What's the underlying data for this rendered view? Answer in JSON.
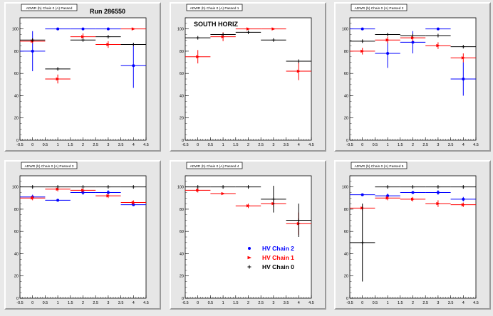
{
  "chart_data": [
    {
      "type": "scatter",
      "title": "ADWR (b) Chain 0 (A) Passed",
      "annotation": "Run 286550",
      "xlim": [
        -0.5,
        4.5
      ],
      "ylim": [
        0,
        110
      ],
      "xticks": [
        "-0.5",
        "0",
        "0.5",
        "1",
        "1.5",
        "2",
        "2.5",
        "3",
        "3.5",
        "4",
        "4.5"
      ],
      "yticks": [
        "0",
        "20",
        "40",
        "60",
        "80",
        "100"
      ],
      "series": [
        {
          "name": "HV Chain 2",
          "color": "#0000ff",
          "marker": "circle",
          "x": [
            0,
            1,
            2,
            3,
            4
          ],
          "y": [
            80,
            100,
            100,
            100,
            67
          ],
          "xerr": [
            0.5,
            0.5,
            0.5,
            0.5,
            0.5
          ],
          "yerr": [
            18,
            0,
            0,
            0,
            20
          ]
        },
        {
          "name": "HV Chain 1",
          "color": "#ff0000",
          "marker": "tri",
          "x": [
            0,
            1,
            2,
            3,
            4
          ],
          "y": [
            89,
            55,
            93,
            86,
            100
          ],
          "xerr": [
            0.5,
            0.5,
            0.5,
            0.5,
            0.5
          ],
          "yerr": [
            2,
            4,
            3,
            3,
            0
          ]
        },
        {
          "name": "HV Chain 0",
          "color": "#000000",
          "marker": "plus",
          "x": [
            0,
            1,
            2,
            3,
            4
          ],
          "y": [
            90,
            64,
            90,
            93,
            86
          ],
          "xerr": [
            0.5,
            0.5,
            0.5,
            0.5,
            0.5
          ],
          "yerr": [
            0,
            0,
            0,
            0,
            0
          ]
        }
      ]
    },
    {
      "type": "scatter",
      "title": "ADWR (b) Chain 0 (A) Passed 1",
      "annotation": "SOUTH HORIZ",
      "xlim": [
        -0.5,
        4.5
      ],
      "ylim": [
        0,
        110
      ],
      "xticks": [
        "-0.5",
        "0",
        "0.5",
        "1",
        "1.5",
        "2",
        "2.5",
        "3",
        "3.5",
        "4",
        "4.5"
      ],
      "yticks": [
        "0",
        "20",
        "40",
        "60",
        "80",
        "100"
      ],
      "series": [
        {
          "name": "HV Chain 1",
          "color": "#ff0000",
          "marker": "tri",
          "x": [
            0,
            1,
            2,
            3,
            4
          ],
          "y": [
            75,
            93,
            100,
            100,
            62
          ],
          "xerr": [
            0.5,
            0.5,
            0.5,
            0.5,
            0.5
          ],
          "yerr": [
            6,
            4,
            0,
            0,
            8
          ]
        },
        {
          "name": "HV Chain 0",
          "color": "#000000",
          "marker": "plus",
          "x": [
            0,
            1,
            2,
            3,
            4
          ],
          "y": [
            92,
            95,
            97,
            90,
            71
          ],
          "xerr": [
            0.5,
            0.5,
            0.5,
            0.5,
            0.5
          ],
          "yerr": [
            0,
            0,
            0,
            0,
            0
          ]
        }
      ]
    },
    {
      "type": "scatter",
      "title": "ADWR (b) Chain 0 (A) Passed 2",
      "annotation": "",
      "xlim": [
        -0.5,
        4.5
      ],
      "ylim": [
        0,
        110
      ],
      "xticks": [
        "-0.5",
        "0",
        "0.5",
        "1",
        "1.5",
        "2",
        "2.5",
        "3",
        "3.5",
        "4",
        "4.5"
      ],
      "yticks": [
        "0",
        "20",
        "40",
        "60",
        "80",
        "100"
      ],
      "series": [
        {
          "name": "HV Chain 2",
          "color": "#0000ff",
          "marker": "circle",
          "x": [
            0,
            1,
            2,
            3,
            4
          ],
          "y": [
            100,
            78,
            88,
            100,
            55
          ],
          "xerr": [
            0.5,
            0.5,
            0.5,
            0.5,
            0.5
          ],
          "yerr": [
            0,
            13,
            10,
            0,
            15
          ]
        },
        {
          "name": "HV Chain 1",
          "color": "#ff0000",
          "marker": "tri",
          "x": [
            0,
            1,
            2,
            3,
            4
          ],
          "y": [
            80,
            90,
            92,
            85,
            74
          ],
          "xerr": [
            0.5,
            0.5,
            0.5,
            0.5,
            0.5
          ],
          "yerr": [
            3,
            3,
            3,
            3,
            4
          ]
        },
        {
          "name": "HV Chain 0",
          "color": "#000000",
          "marker": "plus",
          "x": [
            0,
            1,
            2,
            3,
            4
          ],
          "y": [
            89,
            95,
            94,
            94,
            84
          ],
          "xerr": [
            0.5,
            0.5,
            0.5,
            0.5,
            0.5
          ],
          "yerr": [
            0,
            0,
            0,
            0,
            0
          ]
        }
      ]
    },
    {
      "type": "scatter",
      "title": "ADWR (b) Chain 0 (A) Passed 3",
      "annotation": "",
      "xlim": [
        -0.5,
        4.5
      ],
      "ylim": [
        0,
        110
      ],
      "xticks": [
        "-0.5",
        "0",
        "0.5",
        "1",
        "1.5",
        "2",
        "2.5",
        "3",
        "3.5",
        "4",
        "4.5"
      ],
      "yticks": [
        "0",
        "20",
        "40",
        "60",
        "80",
        "100"
      ],
      "series": [
        {
          "name": "HV Chain 2",
          "color": "#0000ff",
          "marker": "circle",
          "x": [
            0,
            1,
            2,
            3,
            4
          ],
          "y": [
            91,
            88,
            95,
            95,
            84
          ],
          "xerr": [
            0.5,
            0.5,
            0.5,
            0.5,
            0.5
          ],
          "yerr": [
            2,
            0,
            2,
            2,
            0
          ]
        },
        {
          "name": "HV Chain 1",
          "color": "#ff0000",
          "marker": "tri",
          "x": [
            0,
            1,
            2,
            3,
            4
          ],
          "y": [
            90,
            98,
            97,
            92,
            86
          ],
          "xerr": [
            0.5,
            0.5,
            0.5,
            0.5,
            0.5
          ],
          "yerr": [
            2,
            2,
            2,
            2,
            2
          ]
        },
        {
          "name": "HV Chain 0",
          "color": "#000000",
          "marker": "plus",
          "x": [
            0,
            1,
            2,
            3,
            4
          ],
          "y": [
            100,
            100,
            100,
            100,
            100
          ],
          "xerr": [
            0.5,
            0.5,
            0.5,
            0.5,
            0.5
          ],
          "yerr": [
            0,
            0,
            0,
            0,
            0
          ]
        }
      ]
    },
    {
      "type": "scatter",
      "title": "ADWR (b) Chain 0 (A) Passed 4",
      "annotation": "",
      "xlim": [
        -0.5,
        4.5
      ],
      "ylim": [
        0,
        110
      ],
      "xticks": [
        "-0.5",
        "0",
        "0.5",
        "1",
        "1.5",
        "2",
        "2.5",
        "3",
        "3.5",
        "4",
        "4.5"
      ],
      "yticks": [
        "0",
        "20",
        "40",
        "60",
        "80",
        "100"
      ],
      "legend": {
        "placement": "bottom-right",
        "entries": [
          "HV Chain 2",
          "HV Chain 1",
          "HV Chain 0"
        ],
        "colors": [
          "#0000ff",
          "#ff0000",
          "#000000"
        ],
        "markers": [
          "circle",
          "tri",
          "plus"
        ]
      },
      "series": [
        {
          "name": "HV Chain 1",
          "color": "#ff0000",
          "marker": "tri",
          "x": [
            0,
            1,
            2,
            3,
            4
          ],
          "y": [
            97,
            94,
            83,
            85,
            67
          ],
          "xerr": [
            0.5,
            0.5,
            0.5,
            0.5,
            0.5
          ],
          "yerr": [
            2,
            0,
            2,
            3,
            10
          ]
        },
        {
          "name": "HV Chain 0",
          "color": "#000000",
          "marker": "plus",
          "x": [
            0,
            1,
            2,
            3,
            4
          ],
          "y": [
            100,
            100,
            100,
            89,
            70
          ],
          "xerr": [
            0.5,
            0.5,
            0.5,
            0.5,
            0.5
          ],
          "yerr": [
            0,
            0,
            0,
            12,
            15
          ]
        }
      ]
    },
    {
      "type": "scatter",
      "title": "ADWR (b) Chain 0 (A) Passed 5",
      "annotation": "",
      "xlim": [
        -0.5,
        4.5
      ],
      "ylim": [
        0,
        110
      ],
      "xticks": [
        "-0.5",
        "0",
        "0.5",
        "1",
        "1.5",
        "2",
        "2.5",
        "3",
        "3.5",
        "4",
        "4.5"
      ],
      "yticks": [
        "0",
        "20",
        "40",
        "60",
        "80",
        "100"
      ],
      "series": [
        {
          "name": "HV Chain 2",
          "color": "#0000ff",
          "marker": "circle",
          "x": [
            0,
            1,
            2,
            3,
            4
          ],
          "y": [
            93,
            92,
            95,
            95,
            89
          ],
          "xerr": [
            0.5,
            0.5,
            0.5,
            0.5,
            0.5
          ],
          "yerr": [
            0,
            2,
            0,
            2,
            2
          ]
        },
        {
          "name": "HV Chain 1",
          "color": "#ff0000",
          "marker": "tri",
          "x": [
            0,
            1,
            2,
            3,
            4
          ],
          "y": [
            81,
            90,
            89,
            85,
            84
          ],
          "xerr": [
            0.5,
            0.5,
            0.5,
            0.5,
            0.5
          ],
          "yerr": [
            2,
            2,
            2,
            3,
            2
          ]
        },
        {
          "name": "HV Chain 0",
          "color": "#000000",
          "marker": "plus",
          "x": [
            0,
            1,
            2,
            3,
            4
          ],
          "y": [
            50,
            100,
            100,
            100,
            100
          ],
          "xerr": [
            0.5,
            0.5,
            0.5,
            0.5,
            0.5
          ],
          "yerr": [
            35,
            0,
            0,
            0,
            0
          ]
        }
      ]
    }
  ]
}
